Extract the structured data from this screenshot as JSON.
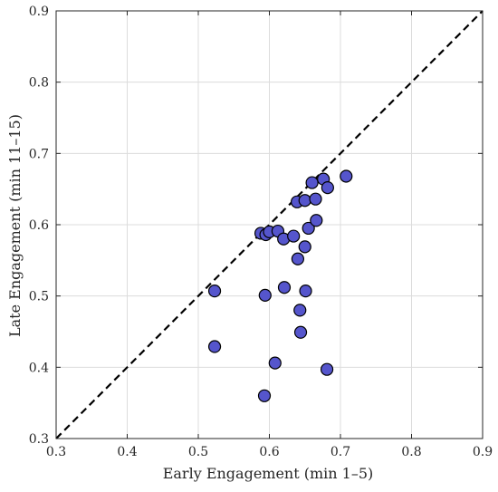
{
  "chart_data": {
    "type": "scatter",
    "title": "",
    "xlabel": "Early Engagement (min 1–5)",
    "ylabel": "Late Engagement (min 11–15)",
    "xlim": [
      0.3,
      0.9
    ],
    "ylim": [
      0.3,
      0.9
    ],
    "xticks": [
      "0.3",
      "0.4",
      "0.5",
      "0.6",
      "0.7",
      "0.8",
      "0.9"
    ],
    "yticks": [
      "0.3",
      "0.4",
      "0.5",
      "0.6",
      "0.7",
      "0.8",
      "0.9"
    ],
    "grid": true,
    "reference_line": {
      "type": "identity",
      "style": "dashed",
      "color": "#000000"
    },
    "marker_color": "#5555cc",
    "marker_edge_color": "#000000",
    "points": [
      {
        "x": 0.523,
        "y": 0.507
      },
      {
        "x": 0.523,
        "y": 0.429
      },
      {
        "x": 0.588,
        "y": 0.588
      },
      {
        "x": 0.595,
        "y": 0.586
      },
      {
        "x": 0.6,
        "y": 0.59
      },
      {
        "x": 0.612,
        "y": 0.591
      },
      {
        "x": 0.594,
        "y": 0.501
      },
      {
        "x": 0.593,
        "y": 0.36
      },
      {
        "x": 0.608,
        "y": 0.406
      },
      {
        "x": 0.62,
        "y": 0.58
      },
      {
        "x": 0.621,
        "y": 0.512
      },
      {
        "x": 0.634,
        "y": 0.584
      },
      {
        "x": 0.639,
        "y": 0.632
      },
      {
        "x": 0.64,
        "y": 0.552
      },
      {
        "x": 0.643,
        "y": 0.48
      },
      {
        "x": 0.644,
        "y": 0.449
      },
      {
        "x": 0.65,
        "y": 0.634
      },
      {
        "x": 0.65,
        "y": 0.569
      },
      {
        "x": 0.651,
        "y": 0.507
      },
      {
        "x": 0.655,
        "y": 0.595
      },
      {
        "x": 0.66,
        "y": 0.659
      },
      {
        "x": 0.665,
        "y": 0.636
      },
      {
        "x": 0.666,
        "y": 0.606
      },
      {
        "x": 0.676,
        "y": 0.664
      },
      {
        "x": 0.682,
        "y": 0.652
      },
      {
        "x": 0.681,
        "y": 0.397
      },
      {
        "x": 0.708,
        "y": 0.668
      }
    ]
  }
}
